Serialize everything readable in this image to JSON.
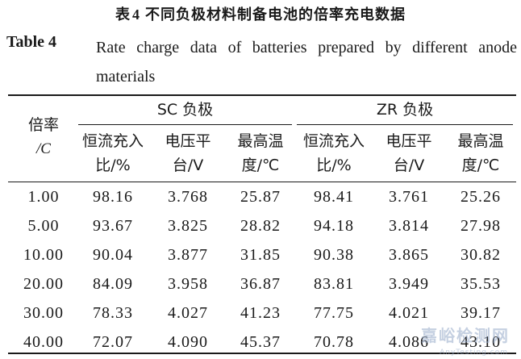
{
  "caption": {
    "cn_prefix": "表",
    "cn_number": "4",
    "cn_title": "不同负极材料制备电池的倍率充电数据",
    "en_label": "Table 4",
    "en_title": "Rate charge data of batteries prepared by different anode materials"
  },
  "table": {
    "rate_header": [
      "倍率",
      "/C"
    ],
    "groups": [
      "SC 负极",
      "ZR 负极"
    ],
    "sub_headers": [
      [
        "恒流充入",
        "比/%"
      ],
      [
        "电压平",
        "台/V"
      ],
      [
        "最高温",
        "度/℃"
      ],
      [
        "恒流充入",
        "比/%"
      ],
      [
        "电压平",
        "台/V"
      ],
      [
        "最高温",
        "度/℃"
      ]
    ],
    "rows": [
      [
        "1.00",
        "98.16",
        "3.768",
        "25.87",
        "98.41",
        "3.761",
        "25.26"
      ],
      [
        "5.00",
        "93.67",
        "3.825",
        "28.82",
        "94.18",
        "3.814",
        "27.98"
      ],
      [
        "10.00",
        "90.04",
        "3.877",
        "31.85",
        "90.38",
        "3.865",
        "30.82"
      ],
      [
        "20.00",
        "84.09",
        "3.958",
        "36.87",
        "83.81",
        "3.949",
        "35.53"
      ],
      [
        "30.00",
        "78.33",
        "4.027",
        "41.23",
        "77.75",
        "4.021",
        "39.17"
      ],
      [
        "40.00",
        "72.07",
        "4.090",
        "45.37",
        "70.78",
        "4.086",
        "43.10"
      ]
    ]
  },
  "watermark": {
    "main": "嘉峪检测网",
    "sub": "AnyTesting.com"
  }
}
